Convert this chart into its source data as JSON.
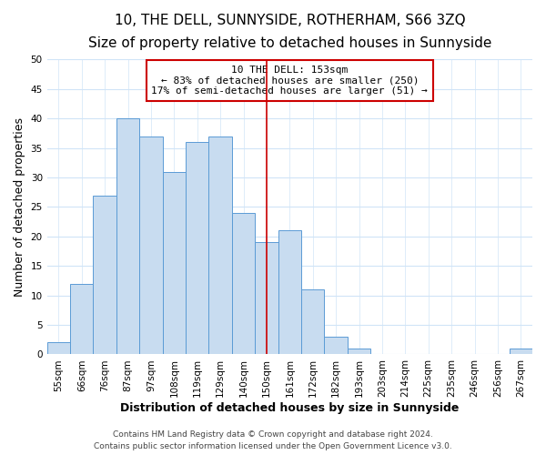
{
  "title": "10, THE DELL, SUNNYSIDE, ROTHERHAM, S66 3ZQ",
  "subtitle": "Size of property relative to detached houses in Sunnyside",
  "xlabel": "Distribution of detached houses by size in Sunnyside",
  "ylabel": "Number of detached properties",
  "footer1": "Contains HM Land Registry data © Crown copyright and database right 2024.",
  "footer2": "Contains public sector information licensed under the Open Government Licence v3.0.",
  "bin_labels": [
    "55sqm",
    "66sqm",
    "76sqm",
    "87sqm",
    "97sqm",
    "108sqm",
    "119sqm",
    "129sqm",
    "140sqm",
    "150sqm",
    "161sqm",
    "172sqm",
    "182sqm",
    "193sqm",
    "203sqm",
    "214sqm",
    "225sqm",
    "235sqm",
    "246sqm",
    "256sqm",
    "267sqm"
  ],
  "bar_heights": [
    2,
    12,
    27,
    40,
    37,
    31,
    36,
    37,
    24,
    19,
    21,
    11,
    3,
    1,
    0,
    0,
    0,
    0,
    0,
    0,
    1
  ],
  "bar_color": "#c8dcf0",
  "bar_edge_color": "#5b9bd5",
  "vline_x": 9.5,
  "vline_color": "#cc0000",
  "ylim": [
    0,
    50
  ],
  "yticks": [
    0,
    5,
    10,
    15,
    20,
    25,
    30,
    35,
    40,
    45,
    50
  ],
  "legend_title": "10 THE DELL: 153sqm",
  "legend_line1": "← 83% of detached houses are smaller (250)",
  "legend_line2": "17% of semi-detached houses are larger (51) →",
  "legend_box_color": "#ffffff",
  "legend_box_edge": "#cc0000",
  "background_color": "#ffffff",
  "grid_color": "#d0e4f7",
  "title_fontsize": 11,
  "subtitle_fontsize": 9,
  "axis_label_fontsize": 9,
  "tick_fontsize": 7.5,
  "legend_fontsize": 8,
  "footer_fontsize": 6.5
}
